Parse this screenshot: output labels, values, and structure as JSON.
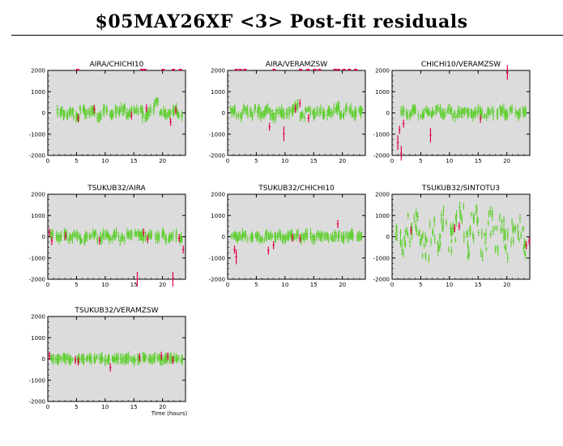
{
  "title": "$05MAY26XF <3> Post-fit residuals",
  "colors": {
    "good": "#5fcf2f",
    "bad": "#e0004a",
    "plot_bg": "#dcdcdc",
    "axis": "#000000"
  },
  "chart_data": [
    {
      "type": "scatter",
      "title": "AIRA/CHICHI10",
      "xlabel": "",
      "ylabel": "",
      "xlim": [
        0,
        24
      ],
      "ylim": [
        -2000,
        2000
      ],
      "xticks": [
        0,
        5,
        10,
        15,
        20
      ],
      "yticks": [
        -2000,
        -1000,
        0,
        1000,
        2000
      ],
      "spread": 120,
      "bad_offtop": [
        5.2,
        16.4,
        16.9,
        20.1,
        21.9,
        23.1
      ],
      "series": [
        {
          "name": "good",
          "x": [
            2.0,
            3.0,
            4.0,
            5.0,
            6.0,
            7.0,
            8.0,
            9.0,
            10.0,
            11.0,
            12.0,
            13.0,
            14.0,
            15.0,
            16.0,
            17.0,
            18.0,
            19.0,
            20.0,
            21.0,
            22.0,
            23.0
          ],
          "y": [
            60,
            -80,
            100,
            -150,
            120,
            -40,
            90,
            -120,
            140,
            -60,
            80,
            200,
            -90,
            100,
            150,
            -130,
            120,
            500,
            60,
            -40,
            110,
            -70
          ]
        },
        {
          "name": "bad",
          "x": [
            5.3,
            8.1,
            14.6,
            17.2,
            21.4,
            22.3
          ],
          "y": [
            -250,
            180,
            -120,
            220,
            -420,
            120
          ]
        }
      ]
    },
    {
      "type": "scatter",
      "title": "AIRA/VERAMZSW",
      "xlabel": "",
      "ylabel": "",
      "xlim": [
        0,
        24
      ],
      "ylim": [
        -2000,
        2000
      ],
      "xticks": [
        0,
        5,
        10,
        15,
        20
      ],
      "yticks": [
        -2000,
        -1000,
        0,
        1000,
        2000
      ],
      "spread": 140,
      "bad_offtop": [
        1.5,
        2.2,
        3.0,
        8.1,
        12.7,
        14.0,
        15.2,
        16.0,
        18.7,
        19.3,
        20.3,
        21.2,
        22.3
      ],
      "series": [
        {
          "name": "good",
          "x": [
            1.0,
            2.0,
            3.0,
            4.0,
            5.0,
            6.0,
            7.0,
            8.0,
            9.0,
            10.0,
            11.0,
            12.0,
            13.0,
            14.0,
            15.0,
            16.0,
            17.0,
            18.0,
            19.0,
            20.0,
            21.0,
            22.0,
            23.0
          ],
          "y": [
            50,
            -100,
            120,
            -60,
            150,
            -80,
            60,
            -150,
            100,
            -40,
            80,
            350,
            -120,
            90,
            -60,
            120,
            -80,
            60,
            200,
            -100,
            130,
            -50,
            80
          ]
        },
        {
          "name": "bad",
          "x": [
            7.3,
            9.8,
            11.8,
            12.6,
            14.1
          ],
          "y": [
            -650,
            -980,
            200,
            450,
            -250
          ]
        }
      ]
    },
    {
      "type": "scatter",
      "title": "CHICHI10/VERAMZSW",
      "xlabel": "",
      "ylabel": "",
      "xlim": [
        0,
        24
      ],
      "ylim": [
        -2000,
        2000
      ],
      "xticks": [
        0,
        5,
        10,
        15,
        20
      ],
      "yticks": [
        -2000,
        -1000,
        0,
        1000,
        2000
      ],
      "spread": 110,
      "bad_offtop": [],
      "series": [
        {
          "name": "good",
          "x": [
            2.0,
            3.0,
            4.0,
            5.0,
            6.0,
            7.0,
            8.0,
            9.0,
            10.0,
            11.0,
            12.0,
            13.0,
            14.0,
            15.0,
            16.0,
            17.0,
            18.0,
            19.0,
            20.0,
            21.0,
            22.0,
            23.0
          ],
          "y": [
            80,
            -60,
            120,
            -100,
            60,
            -40,
            150,
            -80,
            100,
            -120,
            60,
            80,
            -60,
            120,
            -100,
            90,
            -40,
            150,
            -80,
            100,
            -60,
            40
          ]
        },
        {
          "name": "bad",
          "x": [
            1.0,
            1.3,
            1.6,
            2.0,
            6.7,
            15.4,
            20.1
          ],
          "y": [
            -1400,
            -800,
            -1900,
            -500,
            -1050,
            -280,
            1900
          ]
        }
      ]
    },
    {
      "type": "scatter",
      "title": "TSUKUB32/AIRA",
      "xlabel": "",
      "ylabel": "",
      "xlim": [
        0,
        24
      ],
      "ylim": [
        -2000,
        2000
      ],
      "xticks": [
        0,
        5,
        10,
        15,
        20
      ],
      "yticks": [
        -2000,
        -1000,
        0,
        1000,
        2000
      ],
      "spread": 110,
      "bad_offtop": [],
      "series": [
        {
          "name": "good",
          "x": [
            1.0,
            2.0,
            3.0,
            4.0,
            5.0,
            6.0,
            7.0,
            8.0,
            9.0,
            10.0,
            11.0,
            12.0,
            13.0,
            14.0,
            15.0,
            16.0,
            17.0,
            18.0,
            19.0,
            20.0,
            21.0,
            22.0,
            23.0
          ],
          "y": [
            60,
            -60,
            100,
            -40,
            80,
            -100,
            40,
            120,
            -60,
            80,
            -40,
            100,
            -80,
            60,
            120,
            150,
            -60,
            80,
            -40,
            100,
            -60,
            50,
            -80
          ]
        },
        {
          "name": "bad",
          "x": [
            0.3,
            0.7,
            3.1,
            9.0,
            15.6,
            16.7,
            17.4,
            21.8,
            22.9,
            23.6
          ],
          "y": [
            200,
            -200,
            30,
            -180,
            -2000,
            200,
            -100,
            -2000,
            -60,
            -600
          ]
        }
      ]
    },
    {
      "type": "scatter",
      "title": "TSUKUB32/CHICHI10",
      "xlabel": "",
      "ylabel": "",
      "xlim": [
        0,
        24
      ],
      "ylim": [
        -2000,
        2000
      ],
      "xticks": [
        0,
        5,
        10,
        15,
        20
      ],
      "yticks": [
        -2000,
        -1000,
        0,
        1000,
        2000
      ],
      "spread": 90,
      "bad_offtop": [],
      "series": [
        {
          "name": "good",
          "x": [
            1.0,
            2.0,
            3.0,
            4.0,
            5.0,
            6.0,
            7.0,
            8.0,
            9.0,
            10.0,
            11.0,
            12.0,
            13.0,
            14.0,
            15.0,
            16.0,
            17.0,
            18.0,
            19.0,
            20.0,
            21.0,
            22.0,
            23.0
          ],
          "y": [
            50,
            -40,
            80,
            -60,
            40,
            -80,
            60,
            -40,
            80,
            -60,
            40,
            60,
            -40,
            80,
            -60,
            40,
            60,
            -40,
            80,
            -60,
            40,
            60,
            -40
          ]
        },
        {
          "name": "bad",
          "x": [
            1.2,
            1.5,
            7.1,
            8.0,
            11.3,
            12.6,
            19.2
          ],
          "y": [
            -600,
            -950,
            -650,
            -400,
            -50,
            -80,
            600
          ]
        }
      ]
    },
    {
      "type": "scatter",
      "title": "TSUKUB32/SINTOTU3",
      "xlabel": "",
      "ylabel": "",
      "xlim": [
        0,
        24
      ],
      "ylim": [
        -2000,
        2000
      ],
      "xticks": [
        0,
        5,
        10,
        15,
        20
      ],
      "yticks": [
        -2000,
        -1000,
        0,
        1000,
        2000
      ],
      "spread": 650,
      "bad_offtop": [],
      "series": [
        {
          "name": "good",
          "x": [
            1.0,
            2.0,
            3.0,
            4.0,
            5.0,
            6.0,
            7.0,
            8.0,
            9.0,
            10.0,
            11.0,
            12.0,
            13.0,
            14.0,
            15.0,
            16.0,
            17.0,
            18.0,
            19.0,
            20.0,
            21.0,
            22.0,
            23.0
          ],
          "y": [
            200,
            -300,
            400,
            500,
            -400,
            -600,
            300,
            -500,
            600,
            -200,
            400,
            900,
            -300,
            500,
            800,
            -400,
            600,
            -200,
            300,
            -400,
            200,
            500,
            -200
          ]
        },
        {
          "name": "bad",
          "x": [
            3.3,
            10.9,
            11.7,
            23.4,
            23.9
          ],
          "y": [
            300,
            400,
            500,
            -400,
            -200
          ]
        }
      ]
    },
    {
      "type": "scatter",
      "title": "TSUKUB32/VERAMZSW",
      "xlabel": "Time (hours)",
      "ylabel": "",
      "xlim": [
        0,
        24
      ],
      "ylim": [
        -2000,
        2000
      ],
      "xticks": [
        0,
        5,
        10,
        15,
        20
      ],
      "yticks": [
        -2000,
        -1000,
        0,
        1000,
        2000
      ],
      "spread": 70,
      "bad_offtop": [],
      "series": [
        {
          "name": "good",
          "x": [
            1.0,
            2.0,
            3.0,
            4.0,
            5.0,
            6.0,
            7.0,
            8.0,
            9.0,
            10.0,
            11.0,
            12.0,
            13.0,
            14.0,
            15.0,
            16.0,
            17.0,
            18.0,
            19.0,
            20.0,
            21.0,
            22.0,
            23.0
          ],
          "y": [
            40,
            -30,
            50,
            -40,
            30,
            -20,
            40,
            -30,
            50,
            -40,
            30,
            40,
            -30,
            50,
            -40,
            30,
            40,
            -30,
            50,
            -40,
            30,
            40,
            -30
          ]
        },
        {
          "name": "bad",
          "x": [
            0.3,
            4.8,
            5.3,
            10.9,
            16.0,
            19.8,
            20.9,
            21.8
          ],
          "y": [
            150,
            -50,
            -120,
            -400,
            80,
            150,
            120,
            -60
          ]
        }
      ]
    }
  ]
}
